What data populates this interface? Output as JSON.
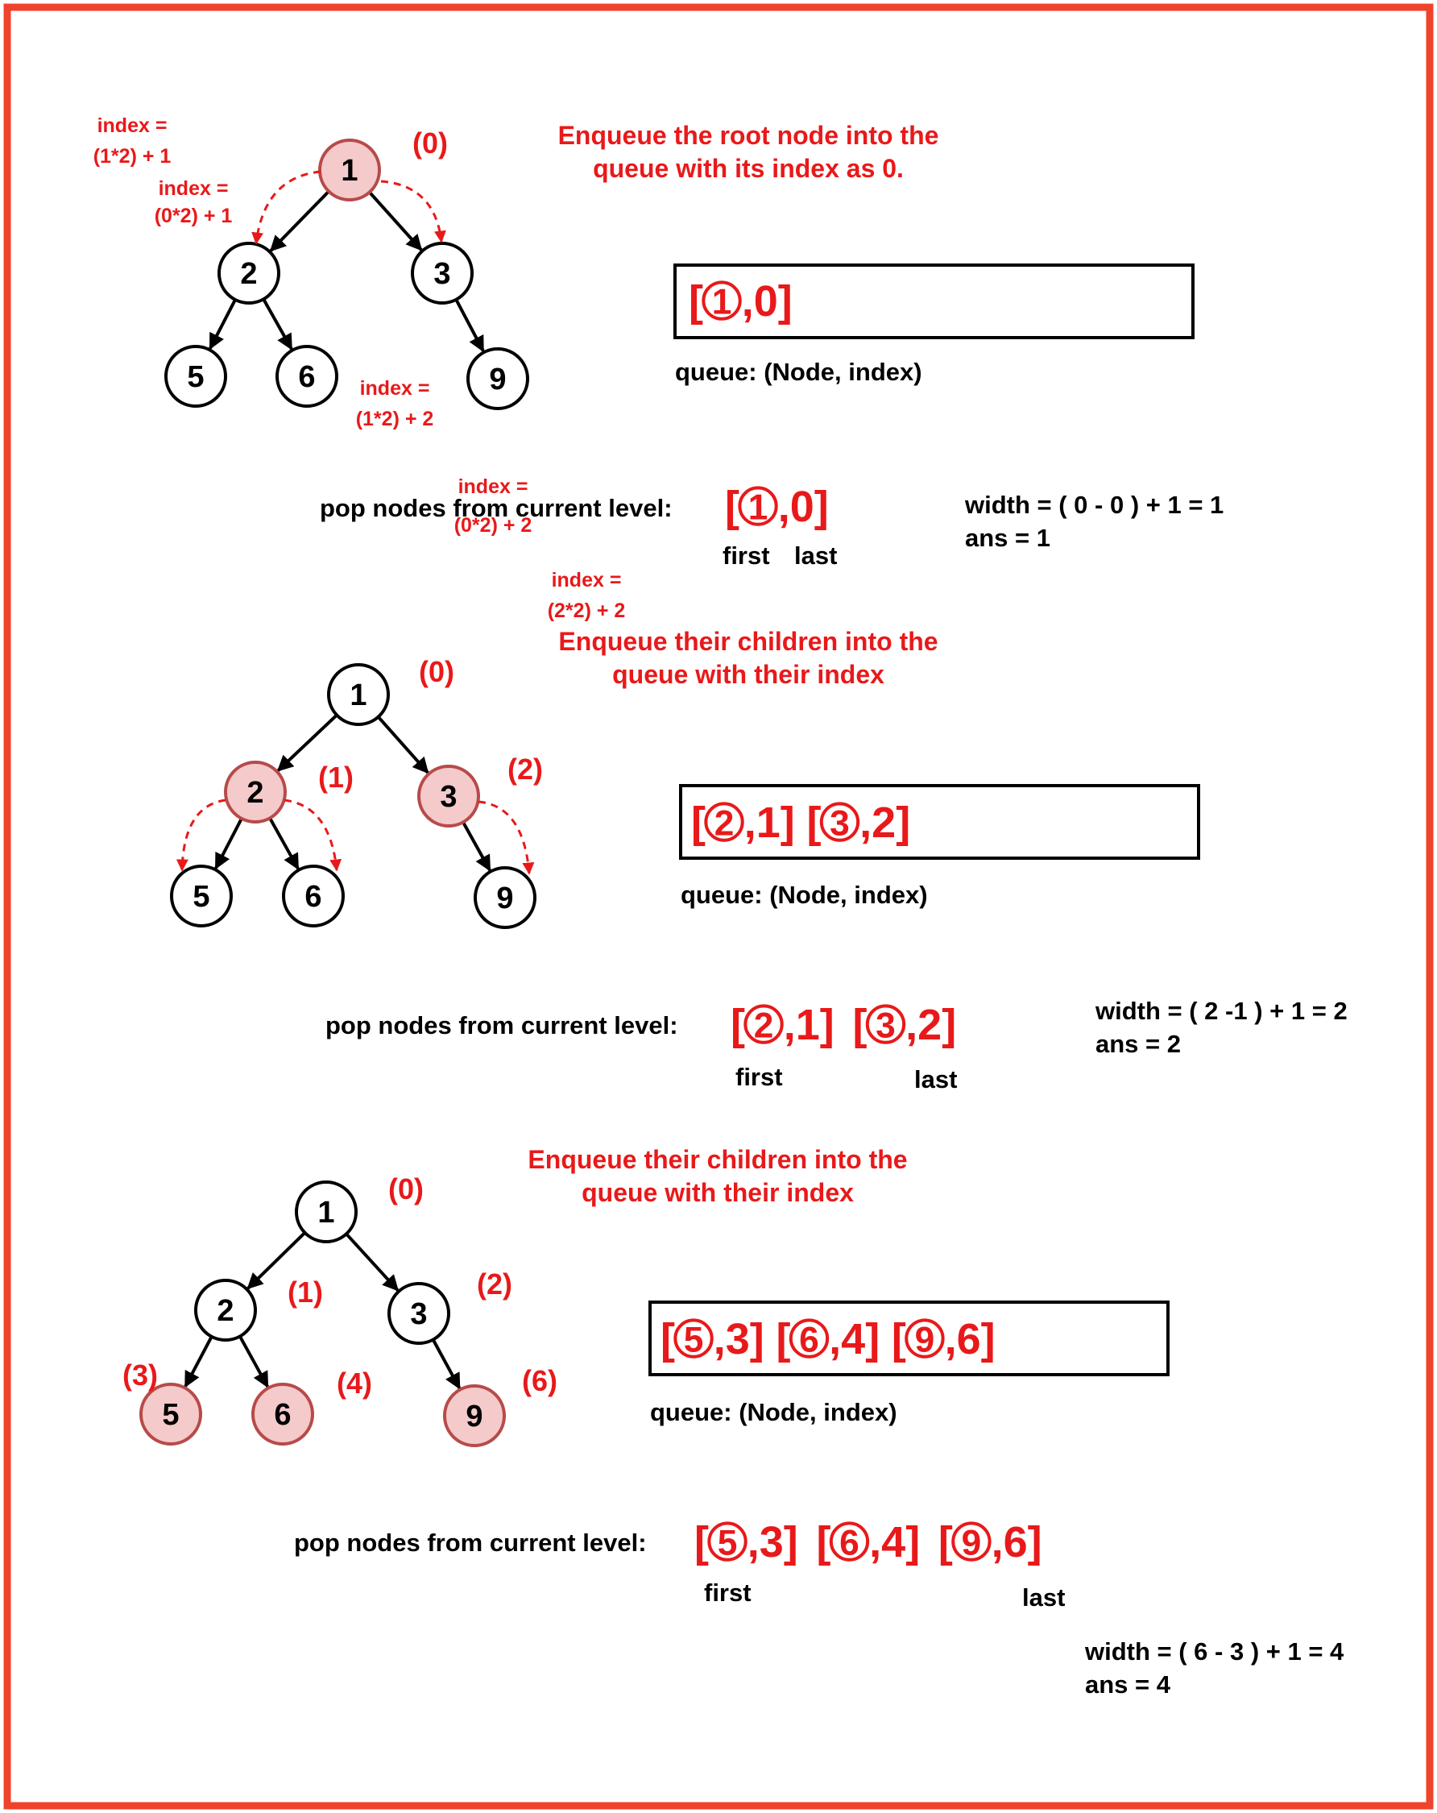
{
  "colors": {
    "accent": "#e8191a",
    "border": "#f0432c",
    "highlight_fill": "#f4caca",
    "highlight_stroke": "#b84a4a"
  },
  "steps": [
    {
      "heading": [
        "Enqueue the root node into the",
        "queue with its index as  0."
      ],
      "tree": {
        "nodes": [
          {
            "id": "1",
            "highlight": true,
            "index_label": "(0)"
          },
          {
            "id": "2",
            "highlight": false,
            "index_label": ""
          },
          {
            "id": "3",
            "highlight": false,
            "index_label": ""
          },
          {
            "id": "5",
            "highlight": false,
            "index_label": ""
          },
          {
            "id": "6",
            "highlight": false,
            "index_label": ""
          },
          {
            "id": "9",
            "highlight": false,
            "index_label": ""
          }
        ],
        "annotations": [
          {
            "lines": [
              "index =",
              "(0*2) + 1"
            ]
          },
          {
            "lines": [
              "index =",
              "(0*2) + 2"
            ]
          }
        ]
      },
      "queue_entries": [
        {
          "node": "1",
          "index": "0"
        }
      ],
      "queue_caption": "queue: (Node, index)",
      "pop_label": "pop nodes from current level:",
      "pop_entries": [
        {
          "node": "1",
          "index": "0"
        }
      ],
      "first_label": "first",
      "last_label": "last",
      "width_line": "width = ( 0 - 0 ) + 1 = 1",
      "ans_line": "ans = 1"
    },
    {
      "heading": [
        "Enqueue their children into the",
        "queue with their index"
      ],
      "tree": {
        "nodes": [
          {
            "id": "1",
            "highlight": false,
            "index_label": "(0)"
          },
          {
            "id": "2",
            "highlight": true,
            "index_label": "(1)"
          },
          {
            "id": "3",
            "highlight": true,
            "index_label": "(2)"
          },
          {
            "id": "5",
            "highlight": false,
            "index_label": ""
          },
          {
            "id": "6",
            "highlight": false,
            "index_label": ""
          },
          {
            "id": "9",
            "highlight": false,
            "index_label": ""
          }
        ],
        "annotations": [
          {
            "lines": [
              "index =",
              "(1*2) + 1"
            ]
          },
          {
            "lines": [
              "index =",
              "(1*2) + 2"
            ]
          },
          {
            "lines": [
              "index =",
              "(2*2) + 2"
            ]
          }
        ]
      },
      "queue_entries": [
        {
          "node": "2",
          "index": "1"
        },
        {
          "node": "3",
          "index": "2"
        }
      ],
      "queue_caption": "queue: (Node, index)",
      "pop_label": "pop nodes from current level:",
      "pop_entries": [
        {
          "node": "2",
          "index": "1"
        },
        {
          "node": "3",
          "index": "2"
        }
      ],
      "first_label": "first",
      "last_label": "last",
      "width_line": "width = ( 2 -1 ) + 1 = 2",
      "ans_line": "ans = 2"
    },
    {
      "heading": [
        "Enqueue their children into the",
        "queue with their index"
      ],
      "tree": {
        "nodes": [
          {
            "id": "1",
            "highlight": false,
            "index_label": "(0)"
          },
          {
            "id": "2",
            "highlight": false,
            "index_label": "(1)"
          },
          {
            "id": "3",
            "highlight": false,
            "index_label": "(2)"
          },
          {
            "id": "5",
            "highlight": true,
            "index_label": "(3)"
          },
          {
            "id": "6",
            "highlight": true,
            "index_label": "(4)"
          },
          {
            "id": "9",
            "highlight": true,
            "index_label": "(6)"
          }
        ],
        "annotations": []
      },
      "queue_entries": [
        {
          "node": "5",
          "index": "3"
        },
        {
          "node": "6",
          "index": "4"
        },
        {
          "node": "9",
          "index": "6"
        }
      ],
      "queue_caption": "queue: (Node, index)",
      "pop_label": "pop nodes from current level:",
      "pop_entries": [
        {
          "node": "5",
          "index": "3"
        },
        {
          "node": "6",
          "index": "4"
        },
        {
          "node": "9",
          "index": "6"
        }
      ],
      "first_label": "first",
      "last_label": "last",
      "width_line": "width = ( 6 - 3 ) + 1 = 4",
      "ans_line": "ans = 4"
    }
  ]
}
